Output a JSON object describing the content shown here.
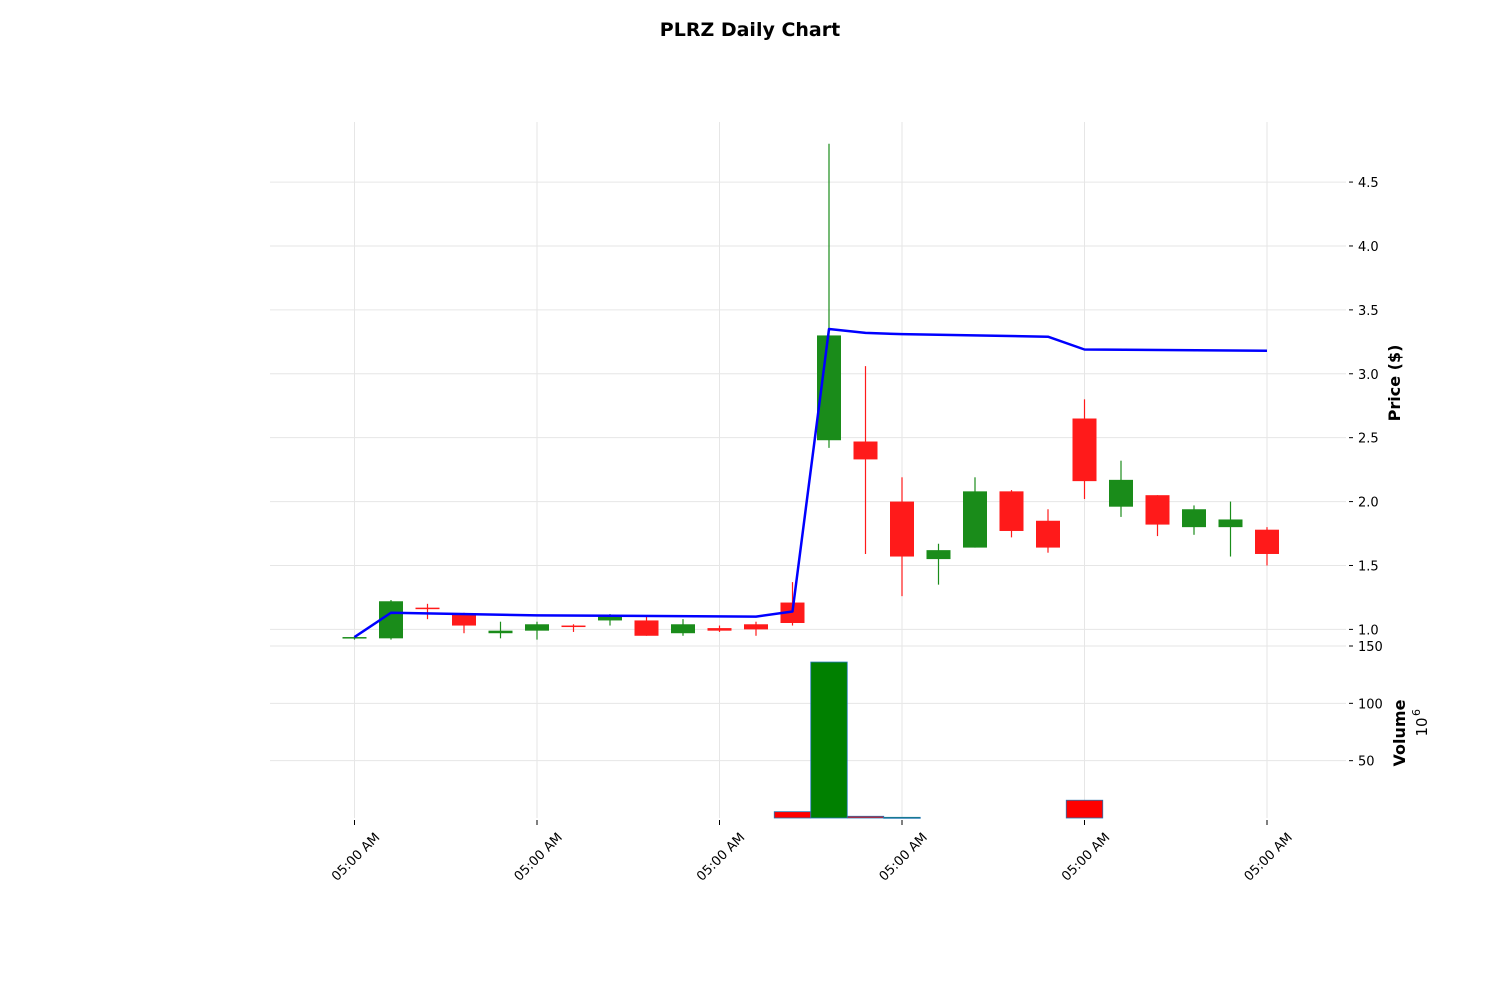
{
  "chart_data": {
    "type": "candlestick",
    "title": "PLRZ Daily Chart",
    "price_panel": {
      "ylabel": "Price ($)",
      "ylim": [
        0.87,
        4.97
      ],
      "yticks": [
        1.0,
        1.5,
        2.0,
        2.5,
        3.0,
        3.5,
        4.0,
        4.5
      ],
      "ytick_labels": [
        "1.0",
        "1.5",
        "2.0",
        "2.5",
        "3.0",
        "3.5",
        "4.0",
        "4.5"
      ],
      "grid": true,
      "up_color": "#1a8c1a",
      "down_color": "#ff1a1a",
      "candles": [
        {
          "open": 0.94,
          "high": 0.95,
          "low": 0.92,
          "close": 0.94
        },
        {
          "open": 0.93,
          "high": 1.23,
          "low": 0.92,
          "close": 1.22
        },
        {
          "open": 1.17,
          "high": 1.2,
          "low": 1.08,
          "close": 1.16
        },
        {
          "open": 1.12,
          "high": 1.13,
          "low": 0.97,
          "close": 1.03
        },
        {
          "open": 0.97,
          "high": 1.06,
          "low": 0.93,
          "close": 0.99
        },
        {
          "open": 0.99,
          "high": 1.06,
          "low": 0.92,
          "close": 1.04
        },
        {
          "open": 1.03,
          "high": 1.04,
          "low": 0.98,
          "close": 1.02
        },
        {
          "open": 1.07,
          "high": 1.12,
          "low": 1.03,
          "close": 1.1
        },
        {
          "open": 1.07,
          "high": 1.1,
          "low": 0.95,
          "close": 0.95
        },
        {
          "open": 0.97,
          "high": 1.08,
          "low": 0.95,
          "close": 1.04
        },
        {
          "open": 1.01,
          "high": 1.03,
          "low": 0.98,
          "close": 0.99
        },
        {
          "open": 1.04,
          "high": 1.06,
          "low": 0.95,
          "close": 1.0
        },
        {
          "open": 1.21,
          "high": 1.37,
          "low": 1.03,
          "close": 1.05
        },
        {
          "open": 2.48,
          "high": 4.8,
          "low": 2.42,
          "close": 3.3
        },
        {
          "open": 2.47,
          "high": 3.06,
          "low": 1.59,
          "close": 2.33
        },
        {
          "open": 2.0,
          "high": 2.19,
          "low": 1.26,
          "close": 1.57
        },
        {
          "open": 1.55,
          "high": 1.67,
          "low": 1.35,
          "close": 1.62
        },
        {
          "open": 1.64,
          "high": 2.19,
          "low": 1.64,
          "close": 2.08
        },
        {
          "open": 2.08,
          "high": 2.09,
          "low": 1.72,
          "close": 1.77
        },
        {
          "open": 1.85,
          "high": 1.94,
          "low": 1.6,
          "close": 1.64
        },
        {
          "open": 2.65,
          "high": 2.8,
          "low": 2.02,
          "close": 2.16
        },
        {
          "open": 1.96,
          "high": 2.32,
          "low": 1.88,
          "close": 2.17
        },
        {
          "open": 2.05,
          "high": 2.05,
          "low": 1.73,
          "close": 1.82
        },
        {
          "open": 1.8,
          "high": 1.97,
          "low": 1.74,
          "close": 1.94
        },
        {
          "open": 1.8,
          "high": 2.0,
          "low": 1.57,
          "close": 1.86
        },
        {
          "open": 1.78,
          "high": 1.8,
          "low": 1.5,
          "close": 1.59
        }
      ],
      "line_series": {
        "color": "#0000ff",
        "points": [
          {
            "index": 0,
            "value": 0.94
          },
          {
            "index": 1,
            "value": 1.13
          },
          {
            "index": 5,
            "value": 1.11
          },
          {
            "index": 11,
            "value": 1.1
          },
          {
            "index": 12,
            "value": 1.14
          },
          {
            "index": 13,
            "value": 3.35
          },
          {
            "index": 14,
            "value": 3.32
          },
          {
            "index": 15,
            "value": 3.31
          },
          {
            "index": 19,
            "value": 3.29
          },
          {
            "index": 20,
            "value": 3.19
          },
          {
            "index": 25,
            "value": 3.18
          }
        ]
      }
    },
    "volume_panel": {
      "ylabel": "Volume",
      "scale_label": "10",
      "scale_exponent": "6",
      "ylim": [
        0,
        150
      ],
      "yticks": [
        50,
        100,
        150
      ],
      "ytick_labels": [
        "50",
        "100",
        "150"
      ],
      "grid": true,
      "bars": [
        {
          "index": 12,
          "value": 5.5,
          "color": "#ff0000"
        },
        {
          "index": 13,
          "value": 136,
          "color": "#008000"
        },
        {
          "index": 14,
          "value": 1.5,
          "color": "#ff0000"
        },
        {
          "index": 15,
          "value": 0.6,
          "color": "#008000"
        },
        {
          "index": 20,
          "value": 15.5,
          "color": "#ff0000"
        }
      ]
    },
    "x_axis": {
      "tick_indices": [
        0,
        5,
        10,
        15,
        20,
        25
      ],
      "tick_labels": [
        "05:00 AM",
        "05:00 AM",
        "05:00 AM",
        "05:00 AM",
        "05:00 AM",
        "05:00 AM"
      ],
      "label_rotation": 45
    }
  }
}
